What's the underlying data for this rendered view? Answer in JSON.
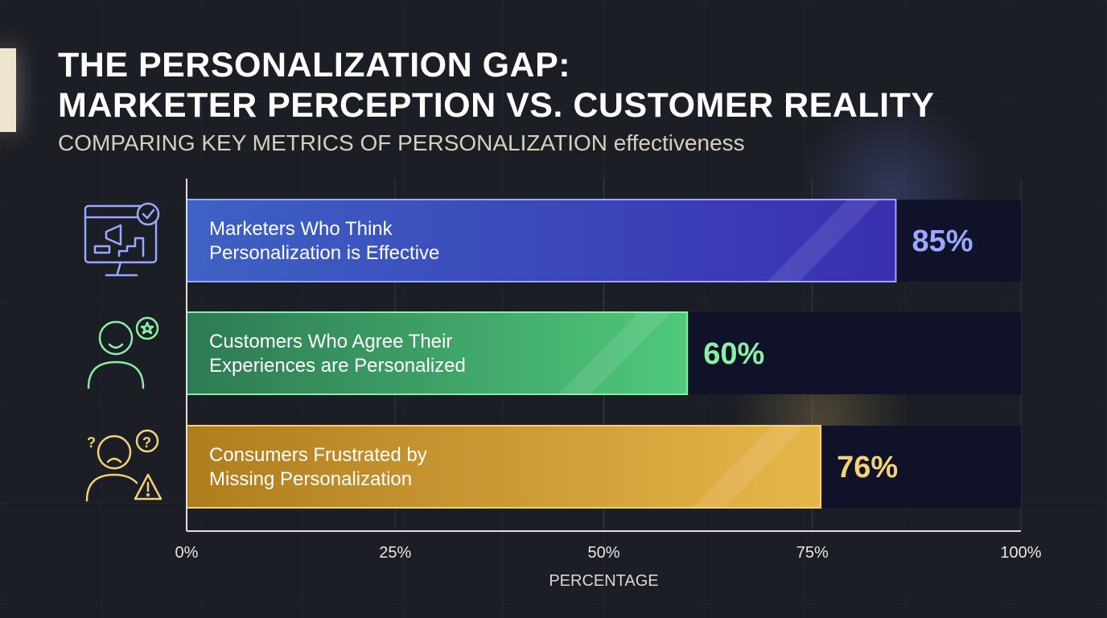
{
  "title_line1": "THE PERSONALIZATION GAP:",
  "title_line2": "MARKETER PERCEPTION VS. CUSTOMER REALITY",
  "subtitle": "COMPARING KEY METRICS OF PERSONALIZATION effectiveness",
  "chart_data": {
    "type": "bar",
    "orientation": "horizontal",
    "categories": [
      "Marketers Who Think Personalization is Effective",
      "Customers Who Agree Their Experiences are Personalized",
      "Consumers Frustrated by Missing Personalization"
    ],
    "category_lines": [
      [
        "Marketers Who Think",
        "Personalization is Effective"
      ],
      [
        "Customers Who Agree Their",
        "Experiences are Personalized"
      ],
      [
        "Consumers Frustrated by",
        "Missing Personalization"
      ]
    ],
    "values": [
      85,
      60,
      76
    ],
    "value_labels": [
      "85%",
      "60%",
      "76%"
    ],
    "icons": [
      "monitor-megaphone-check-icon",
      "smiling-person-star-icon",
      "frustrated-person-warning-icon"
    ],
    "colors": [
      [
        "#3d62c4",
        "#3a2fb0",
        "#9aa8ff"
      ],
      [
        "#2d7a52",
        "#4fc97c",
        "#8cf0a4"
      ],
      [
        "#b07d1e",
        "#e7b64a",
        "#f5d27a"
      ]
    ],
    "xlabel": "PERCENTAGE",
    "xlim": [
      0,
      100
    ],
    "xticks": [
      "0%",
      "25%",
      "50%",
      "75%",
      "100%"
    ],
    "grid": true
  }
}
